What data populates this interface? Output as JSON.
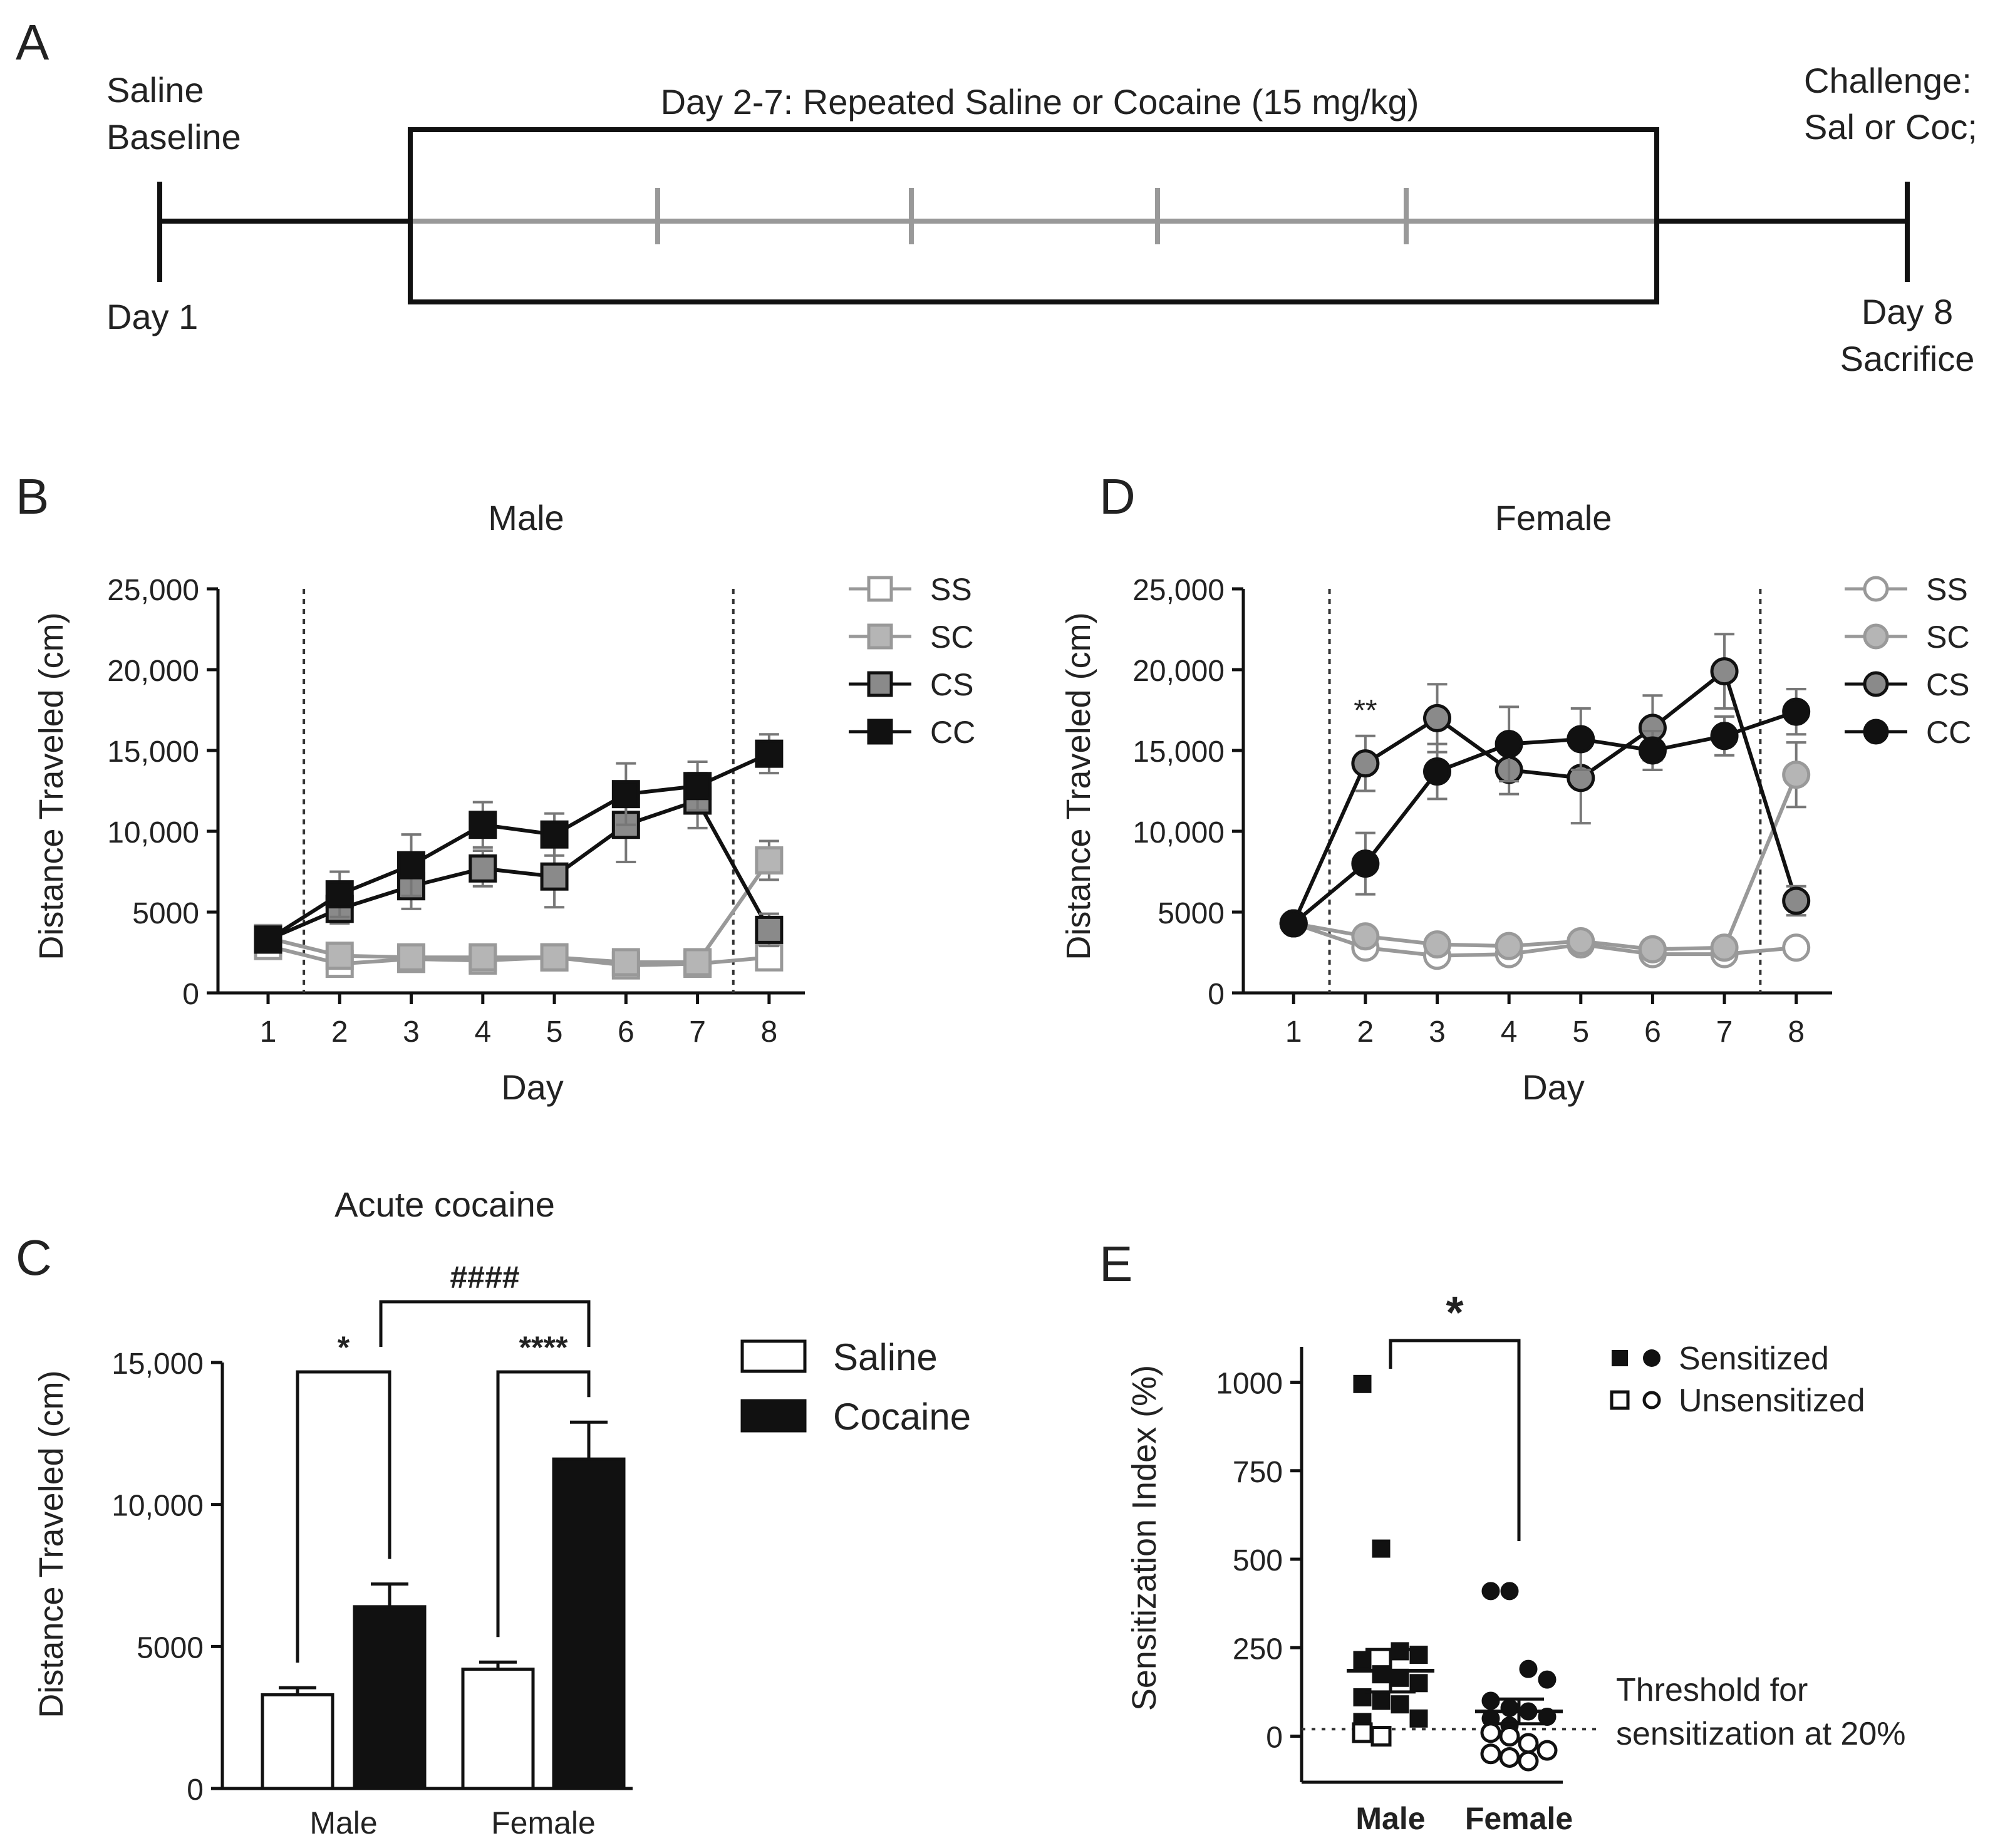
{
  "panel_letters": {
    "a": "A",
    "b": "B",
    "c": "C",
    "d": "D",
    "e": "E"
  },
  "colors": {
    "black": "#111111",
    "dark_gray": "#555555",
    "mid_gray": "#8a8a8a",
    "light_gray": "#b5b5b5",
    "white": "#ffffff"
  },
  "timeline": {
    "start_label_1": "Saline",
    "start_label_2": "Baseline",
    "day1": "Day 1",
    "box_label": "Day 2-7: Repeated Saline or Cocaine (15 mg/kg)",
    "end_label_1": "Challenge:",
    "end_label_2": "Sal or Coc;",
    "day8": "Day 8",
    "sacrifice": "Sacrifice"
  },
  "chart_data": [
    {
      "id": "B",
      "type": "line",
      "title": "Male",
      "xlabel": "Day",
      "ylabel": "Distance Traveled (cm)",
      "x": [
        1,
        2,
        3,
        4,
        5,
        6,
        7,
        8
      ],
      "xlim": [
        0.3,
        8.5
      ],
      "ylim": [
        0,
        25000
      ],
      "yticks": [
        0,
        5000,
        10000,
        15000,
        20000,
        25000
      ],
      "ytick_labels": [
        "0",
        "5000",
        "10,000",
        "15,000",
        "20,000",
        "25,000"
      ],
      "reference_lines_x": [
        1.5,
        7.5
      ],
      "marker": "square",
      "series": [
        {
          "name": "SS",
          "values": [
            2900,
            1800,
            2100,
            2000,
            2200,
            1700,
            1800,
            2200
          ],
          "errors": [
            300,
            300,
            300,
            300,
            300,
            300,
            300,
            400
          ],
          "fill": "#ffffff",
          "stroke": "#999999"
        },
        {
          "name": "SC",
          "values": [
            3400,
            2300,
            2200,
            2200,
            2200,
            1900,
            1900,
            8200
          ],
          "errors": [
            300,
            300,
            300,
            300,
            300,
            300,
            300,
            1200
          ],
          "fill": "#b5b5b5",
          "stroke": "#999999"
        },
        {
          "name": "CS",
          "values": [
            3300,
            5200,
            6600,
            7700,
            7200,
            10400,
            11900,
            3900
          ],
          "errors": [
            400,
            900,
            1400,
            1100,
            1900,
            2300,
            1700,
            1000
          ],
          "fill": "#8a8a8a",
          "stroke": "#111111"
        },
        {
          "name": "CC",
          "values": [
            3300,
            6100,
            7900,
            10400,
            9800,
            12300,
            12800,
            14800
          ],
          "errors": [
            400,
            1400,
            1900,
            1400,
            1300,
            1900,
            1500,
            1200
          ],
          "fill": "#111111",
          "stroke": "#111111"
        }
      ]
    },
    {
      "id": "D",
      "type": "line",
      "title": "Female",
      "xlabel": "Day",
      "ylabel": "Distance Traveled (cm)",
      "x": [
        1,
        2,
        3,
        4,
        5,
        6,
        7,
        8
      ],
      "xlim": [
        0.3,
        8.5
      ],
      "ylim": [
        0,
        25000
      ],
      "yticks": [
        0,
        5000,
        10000,
        15000,
        20000,
        25000
      ],
      "ytick_labels": [
        "0",
        "5000",
        "10,000",
        "15,000",
        "20,000",
        "25,000"
      ],
      "reference_lines_x": [
        1.5,
        7.5
      ],
      "annotations": [
        {
          "x": 2,
          "text": "**"
        }
      ],
      "marker": "circle",
      "series": [
        {
          "name": "SS",
          "values": [
            4300,
            2800,
            2300,
            2400,
            3000,
            2400,
            2400,
            2800
          ],
          "errors": [
            300,
            300,
            300,
            300,
            300,
            300,
            300,
            300
          ],
          "fill": "#ffffff",
          "stroke": "#999999"
        },
        {
          "name": "SC",
          "values": [
            4300,
            3500,
            3000,
            2900,
            3200,
            2700,
            2800,
            13500
          ],
          "errors": [
            300,
            300,
            300,
            300,
            300,
            300,
            300,
            2000
          ],
          "fill": "#b5b5b5",
          "stroke": "#999999"
        },
        {
          "name": "CS",
          "values": [
            4300,
            14200,
            17000,
            13800,
            13300,
            16400,
            19900,
            5700
          ],
          "errors": [
            300,
            1700,
            2100,
            1500,
            2800,
            2000,
            2300,
            900
          ],
          "fill": "#8a8a8a",
          "stroke": "#111111"
        },
        {
          "name": "CC",
          "values": [
            4300,
            8000,
            13700,
            15400,
            15700,
            15000,
            15900,
            17400
          ],
          "errors": [
            300,
            1900,
            1700,
            2300,
            1900,
            1200,
            1200,
            1400
          ],
          "fill": "#111111",
          "stroke": "#111111"
        }
      ]
    },
    {
      "id": "C",
      "type": "bar",
      "title": "Acute cocaine",
      "xlabel": "",
      "ylabel": "Distance Traveled (cm)",
      "categories": [
        "Male",
        "Female"
      ],
      "ylim": [
        0,
        15000
      ],
      "yticks": [
        0,
        5000,
        10000,
        15000
      ],
      "ytick_labels": [
        "0",
        "5000",
        "10,000",
        "15,000"
      ],
      "series": [
        {
          "name": "Saline",
          "values": [
            3300,
            4200
          ],
          "errors": [
            250,
            250
          ],
          "fill": "#ffffff"
        },
        {
          "name": "Cocaine",
          "values": [
            6400,
            11600
          ],
          "errors": [
            800,
            1300
          ],
          "fill": "#111111"
        }
      ],
      "significance": {
        "male": "*",
        "female": "****",
        "between": "####"
      }
    },
    {
      "id": "E",
      "type": "scatter",
      "title": "",
      "xlabel": "",
      "ylabel": "Sensitization Index (%)",
      "categories": [
        "Male",
        "Female"
      ],
      "ylim": [
        -130,
        1100
      ],
      "yticks": [
        0,
        250,
        500,
        750,
        1000
      ],
      "ytick_labels": [
        "0",
        "250",
        "500",
        "750",
        "1000"
      ],
      "threshold": 20,
      "threshold_label_1": "Threshold for",
      "threshold_label_2": "sensitization at 20%",
      "significance": "*",
      "legend": [
        "Sensitized",
        "Unsensitized"
      ],
      "groups": [
        {
          "name": "Male",
          "marker": "square",
          "mean": 185,
          "sem": 60,
          "sensitized": [
            995,
            530,
            240,
            230,
            215,
            175,
            165,
            150,
            110,
            100,
            90,
            50,
            40
          ],
          "unsensitized": [
            10,
            0
          ]
        },
        {
          "name": "Female",
          "marker": "circle",
          "mean": 70,
          "sem": 35,
          "sensitized": [
            410,
            410,
            190,
            160,
            100,
            80,
            70,
            55,
            50,
            30
          ],
          "unsensitized": [
            10,
            0,
            -20,
            -40,
            -50,
            -60,
            -70
          ]
        }
      ]
    }
  ]
}
